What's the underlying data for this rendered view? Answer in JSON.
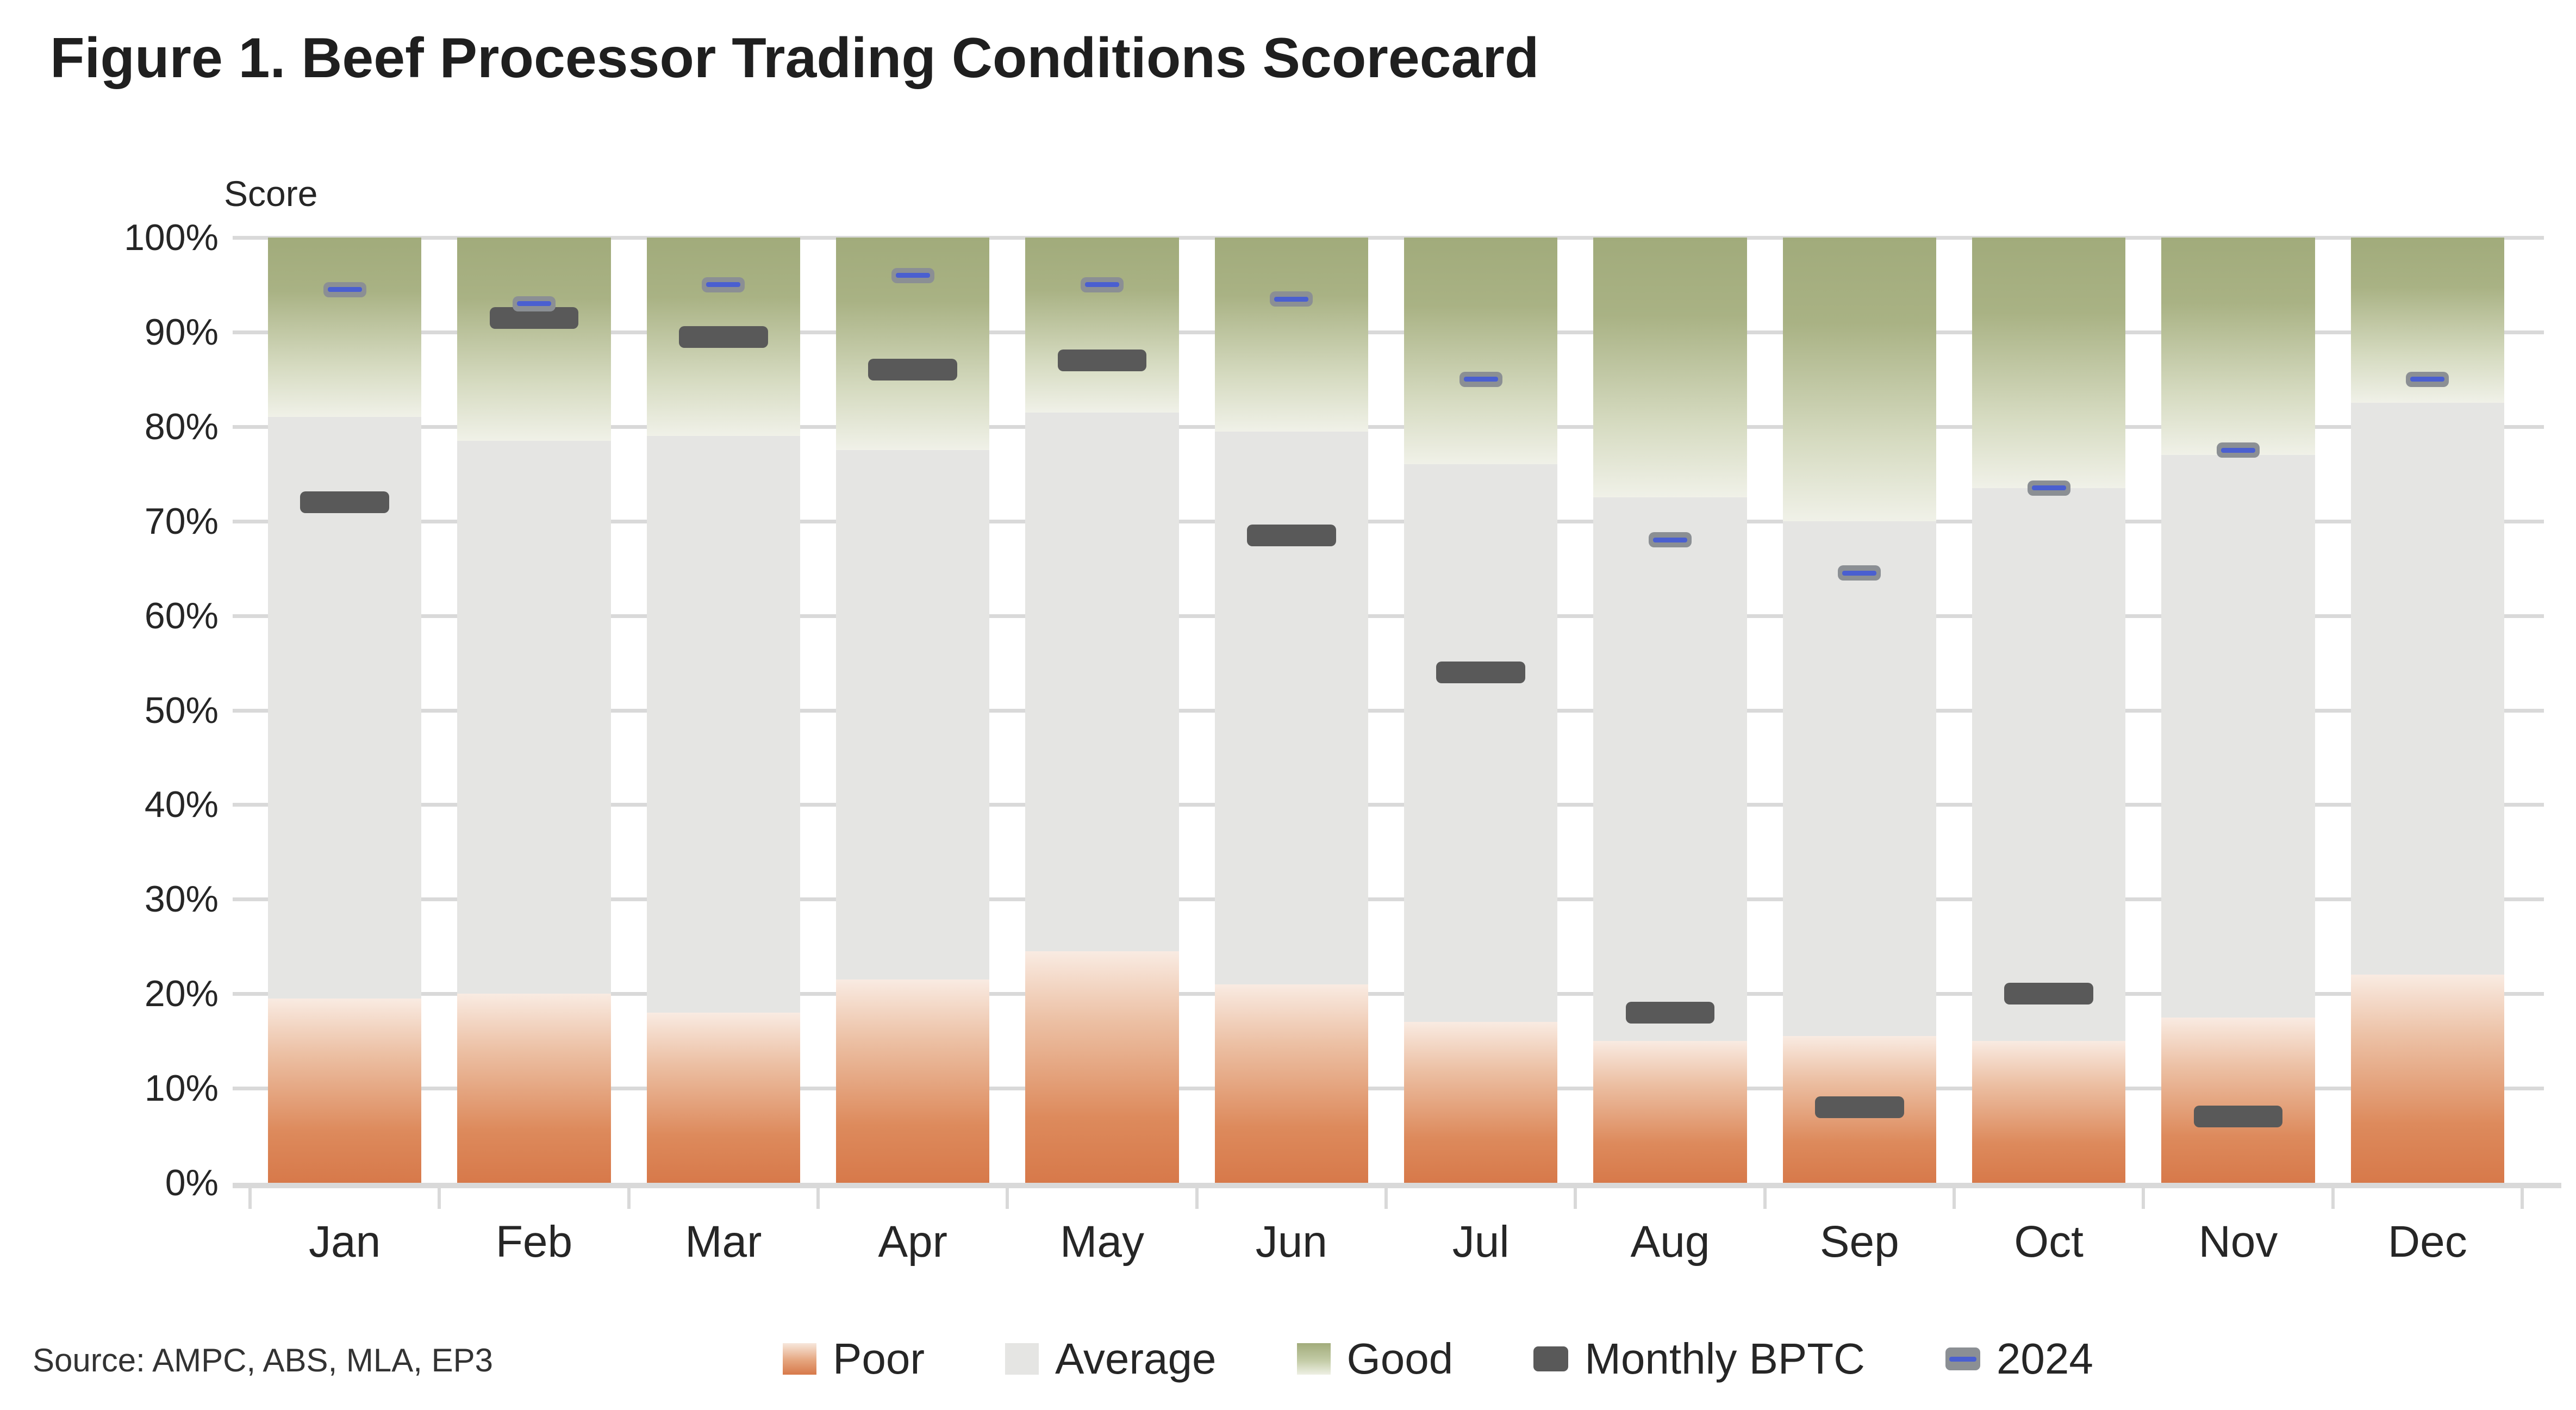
{
  "header": {
    "title": "Figure 1. Beef Processor Trading Conditions Scorecard"
  },
  "source": "Source: AMPC, ABS, MLA, EP3",
  "colors": {
    "poor_solid": "#d7794a",
    "poor_light": "#f9ebe2",
    "average": "#e5e5e3",
    "good_solid": "#a1ab7b",
    "good_light": "#f0f1e8",
    "monthly_bptc": "#595959",
    "pill_2024_body": "#8b8f94",
    "pill_2024_line": "#4a5fd0",
    "gridline": "#d9d9d9",
    "text": "#262626"
  },
  "chart_data": {
    "type": "bar",
    "subtype": "percent-stacked-zones-with-dash-markers",
    "title": "Figure 1. Beef Processor Trading Conditions Scorecard",
    "xlabel": "",
    "ylabel": "Score",
    "ylim": [
      0,
      100
    ],
    "ytick_step": 10,
    "ytick_suffix": "%",
    "grid": true,
    "legend_position": "bottom",
    "categories": [
      "Jan",
      "Feb",
      "Mar",
      "Apr",
      "May",
      "Jun",
      "Jul",
      "Aug",
      "Sep",
      "Oct",
      "Nov",
      "Dec"
    ],
    "series": [
      {
        "name": "Poor",
        "kind": "zone",
        "zone_bottom": [
          0,
          0,
          0,
          0,
          0,
          0,
          0,
          0,
          0,
          0,
          0,
          0
        ],
        "zone_top": [
          19.5,
          20,
          18,
          21.5,
          24.5,
          21,
          17,
          15,
          15.5,
          15,
          17.5,
          22
        ]
      },
      {
        "name": "Average",
        "kind": "zone",
        "zone_top": [
          81,
          78.5,
          79,
          77.5,
          81.5,
          79.5,
          76,
          72.5,
          70,
          73.5,
          77,
          82.5
        ]
      },
      {
        "name": "Good",
        "kind": "zone",
        "zone_top": [
          100,
          100,
          100,
          100,
          100,
          100,
          100,
          100,
          100,
          100,
          100,
          100
        ]
      },
      {
        "name": "Monthly BPTC",
        "kind": "dash-marker",
        "values": [
          72,
          91.5,
          89.5,
          86,
          87,
          68.5,
          54,
          18,
          8,
          20,
          7,
          null
        ]
      },
      {
        "name": "2024",
        "kind": "pill-marker",
        "values": [
          94.5,
          93,
          95,
          96,
          95,
          93.5,
          85,
          68,
          64.5,
          73.5,
          77.5,
          85
        ]
      }
    ]
  }
}
